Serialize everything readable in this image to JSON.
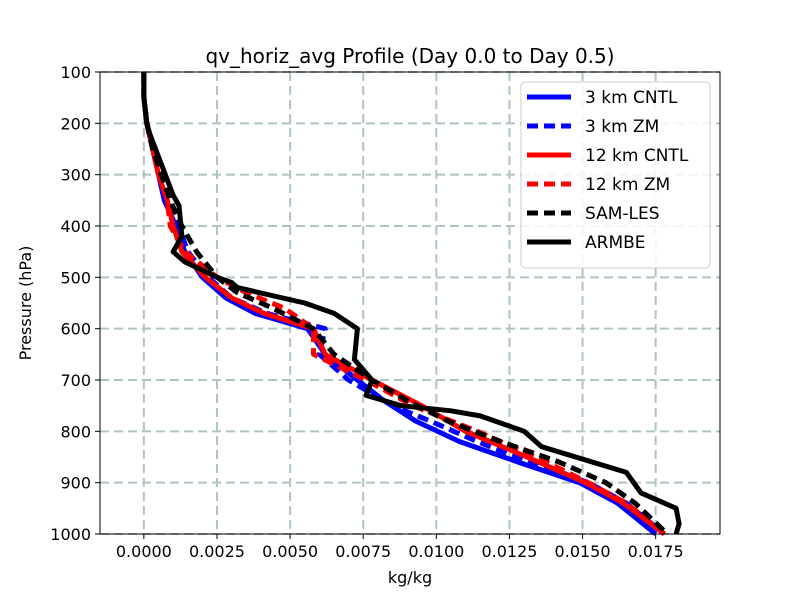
{
  "chart_data": {
    "type": "line",
    "title": "qv_horiz_avg Profile (Day 0.0 to Day 0.5)",
    "xlabel": "kg/kg",
    "ylabel": "Pressure (hPa)",
    "xlim": [
      -0.0015,
      0.0197
    ],
    "ylim": [
      1000,
      100
    ],
    "y_inverted": true,
    "grid": true,
    "legend_position": "top-right",
    "xticks": [
      0.0,
      0.0025,
      0.005,
      0.0075,
      0.01,
      0.0125,
      0.015,
      0.0175
    ],
    "xtick_labels": [
      "0.0000",
      "0.0025",
      "0.0050",
      "0.0075",
      "0.0100",
      "0.0125",
      "0.0150",
      "0.0175"
    ],
    "yticks": [
      100,
      200,
      300,
      400,
      500,
      600,
      700,
      800,
      900,
      1000
    ],
    "ytick_labels": [
      "100",
      "200",
      "300",
      "400",
      "500",
      "600",
      "700",
      "800",
      "900",
      "1000"
    ],
    "series": [
      {
        "name": "3 km CNTL",
        "color": "#0000ff",
        "style": "solid",
        "x": [
          0.0,
          0.0,
          0.0001,
          0.0003,
          0.0005,
          0.0007,
          0.0011,
          0.0014,
          0.002,
          0.0028,
          0.0038,
          0.0056,
          0.0062,
          0.0073,
          0.0082,
          0.0093,
          0.0108,
          0.0128,
          0.0149,
          0.0162,
          0.0175
        ],
        "y": [
          100,
          150,
          200,
          250,
          300,
          350,
          400,
          450,
          500,
          540,
          570,
          600,
          650,
          700,
          740,
          780,
          820,
          860,
          900,
          940,
          1000
        ]
      },
      {
        "name": "3 km ZM",
        "color": "#0000ff",
        "style": "dashed",
        "x": [
          0.0,
          0.0,
          0.0001,
          0.0003,
          0.0006,
          0.0008,
          0.0012,
          0.0015,
          0.0022,
          0.003,
          0.0042,
          0.0062,
          0.006,
          0.007,
          0.0085,
          0.0098,
          0.0114,
          0.0132,
          0.0152,
          0.0165,
          0.0178
        ],
        "y": [
          100,
          150,
          200,
          250,
          300,
          350,
          400,
          450,
          500,
          540,
          570,
          600,
          650,
          700,
          750,
          780,
          820,
          860,
          900,
          940,
          1000
        ]
      },
      {
        "name": "12 km CNTL",
        "color": "#ff0000",
        "style": "solid",
        "x": [
          0.0,
          0.0,
          0.0001,
          0.0003,
          0.0005,
          0.0008,
          0.001,
          0.0013,
          0.0021,
          0.003,
          0.0041,
          0.0058,
          0.0062,
          0.0078,
          0.0095,
          0.011,
          0.0131,
          0.0151,
          0.0164,
          0.0178
        ],
        "y": [
          100,
          150,
          200,
          250,
          300,
          350,
          400,
          450,
          500,
          540,
          570,
          600,
          650,
          700,
          750,
          800,
          850,
          900,
          940,
          1000
        ]
      },
      {
        "name": "12 km ZM",
        "color": "#ff0000",
        "style": "dashed",
        "x": [
          0.0,
          0.0,
          0.0001,
          0.0003,
          0.0005,
          0.0008,
          0.0009,
          0.0014,
          0.0025,
          0.0035,
          0.0048,
          0.0058,
          0.0058,
          0.0076,
          0.0092,
          0.0114,
          0.0134,
          0.0152,
          0.0165,
          0.0178
        ],
        "y": [
          100,
          150,
          200,
          250,
          300,
          350,
          400,
          450,
          500,
          530,
          560,
          600,
          650,
          700,
          750,
          800,
          850,
          900,
          940,
          1000
        ]
      },
      {
        "name": "SAM-LES",
        "color": "#000000",
        "style": "dashed",
        "x": [
          0.0,
          0.0,
          0.0001,
          0.0003,
          0.0006,
          0.0009,
          0.0013,
          0.0018,
          0.0025,
          0.0032,
          0.0044,
          0.0058,
          0.0065,
          0.0078,
          0.009,
          0.0104,
          0.0122,
          0.0142,
          0.0158,
          0.0168,
          0.0179
        ],
        "y": [
          100,
          150,
          200,
          250,
          300,
          350,
          400,
          450,
          500,
          530,
          560,
          600,
          650,
          700,
          740,
          780,
          820,
          860,
          900,
          940,
          1000
        ]
      },
      {
        "name": "ARMBE",
        "color": "#000000",
        "style": "solid",
        "x": [
          0.0,
          0.0,
          0.0001,
          0.0002,
          0.0006,
          0.001,
          0.0012,
          0.0013,
          0.001,
          0.0014,
          0.0025,
          0.003,
          0.0032,
          0.0055,
          0.0065,
          0.0073,
          0.0072,
          0.0078,
          0.0076,
          0.0088,
          0.0105,
          0.0115,
          0.013,
          0.0136,
          0.0165,
          0.017,
          0.0182,
          0.0183,
          0.0182
        ],
        "y": [
          100,
          150,
          200,
          220,
          280,
          340,
          360,
          420,
          450,
          470,
          500,
          510,
          520,
          550,
          570,
          600,
          660,
          700,
          730,
          750,
          760,
          770,
          800,
          830,
          880,
          920,
          950,
          980,
          1000
        ]
      }
    ]
  }
}
